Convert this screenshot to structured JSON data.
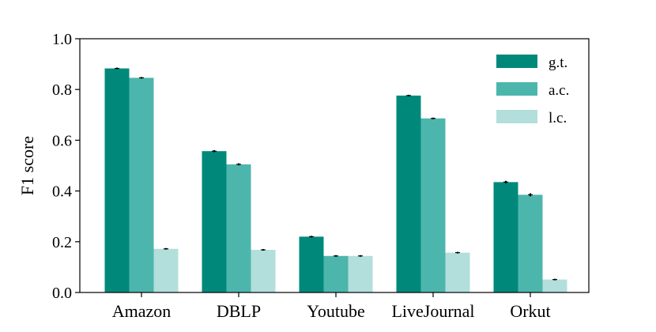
{
  "chart_data": {
    "type": "bar",
    "title": "",
    "xlabel": "",
    "ylabel": "F1 score",
    "ylim": [
      0,
      1.0
    ],
    "yticks": [
      0.0,
      0.2,
      0.4,
      0.6,
      0.8,
      1.0
    ],
    "ytick_labels": [
      "0.0",
      "0.2",
      "0.4",
      "0.6",
      "0.8",
      "1.0"
    ],
    "categories": [
      "Amazon",
      "DBLP",
      "Youtube",
      "LiveJournal",
      "Orkut"
    ],
    "series": [
      {
        "name": "g.t.",
        "color": "#00897b",
        "values": [
          0.883,
          0.557,
          0.22,
          0.776,
          0.435
        ],
        "errors": [
          0.003,
          0.004,
          0.002,
          0.003,
          0.005
        ]
      },
      {
        "name": "a.c.",
        "color": "#4db6ac",
        "values": [
          0.846,
          0.505,
          0.144,
          0.686,
          0.385
        ],
        "errors": [
          0.003,
          0.004,
          0.002,
          0.002,
          0.006
        ]
      },
      {
        "name": "l.c.",
        "color": "#b2dfdb",
        "values": [
          0.172,
          0.168,
          0.144,
          0.157,
          0.051
        ],
        "errors": [
          0.002,
          0.0,
          0.002,
          0.002,
          0.001
        ]
      }
    ],
    "grid": false,
    "legend": {
      "placement": "top-right"
    },
    "error_bar_color": "#000000"
  }
}
